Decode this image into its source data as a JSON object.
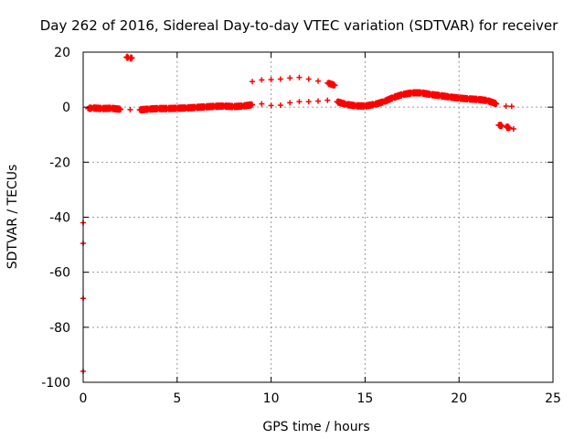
{
  "chart_data": {
    "type": "scatter",
    "title": "Day 262 of 2016, Sidereal Day-to-day VTEC variation (SDTVAR) for receiver",
    "xlabel": "GPS time / hours",
    "ylabel": "SDTVAR / TECUs",
    "xlim": [
      0,
      25
    ],
    "ylim": [
      -100,
      20
    ],
    "xticks": [
      0,
      5,
      10,
      15,
      20,
      25
    ],
    "yticks": [
      -100,
      -80,
      -60,
      -40,
      -20,
      0,
      20
    ],
    "grid": true,
    "series": [
      {
        "name": "SDTVAR",
        "color": "#ff0000",
        "points": [
          [
            0.0,
            -42
          ],
          [
            0.0,
            -49.5
          ],
          [
            0.0,
            -69.5
          ],
          [
            0.0,
            -96
          ],
          [
            0.25,
            -0.5
          ],
          [
            0.5,
            -0.3
          ],
          [
            1.0,
            -0.5
          ],
          [
            1.5,
            -0.4
          ],
          [
            2.0,
            -0.8
          ],
          [
            2.5,
            -0.9
          ],
          [
            3.0,
            -1.0
          ],
          [
            3.5,
            -0.7
          ],
          [
            4.0,
            -0.5
          ],
          [
            4.5,
            -0.5
          ],
          [
            5.0,
            -0.4
          ],
          [
            5.5,
            -0.3
          ],
          [
            6.0,
            -0.1
          ],
          [
            6.5,
            0.1
          ],
          [
            7.0,
            0.3
          ],
          [
            7.5,
            0.4
          ],
          [
            8.0,
            0.2
          ],
          [
            8.5,
            0.4
          ],
          [
            9.0,
            0.9
          ],
          [
            9.5,
            1.2
          ],
          [
            10.0,
            0.6
          ],
          [
            10.5,
            0.7
          ],
          [
            11.0,
            1.6
          ],
          [
            11.5,
            2.0
          ],
          [
            12.0,
            2.0
          ],
          [
            12.5,
            2.2
          ],
          [
            13.0,
            2.5
          ],
          [
            13.5,
            2.0
          ],
          [
            14.0,
            1.0
          ],
          [
            14.5,
            0.5
          ],
          [
            15.0,
            0.4
          ],
          [
            15.5,
            1.0
          ],
          [
            16.0,
            2.0
          ],
          [
            16.5,
            3.5
          ],
          [
            17.0,
            4.6
          ],
          [
            17.5,
            5.2
          ],
          [
            18.0,
            5.2
          ],
          [
            18.5,
            4.6
          ],
          [
            19.0,
            4.2
          ],
          [
            19.5,
            3.7
          ],
          [
            20.0,
            3.3
          ],
          [
            20.5,
            3.0
          ],
          [
            21.0,
            2.8
          ],
          [
            21.5,
            2.4
          ],
          [
            22.0,
            1.2
          ],
          [
            22.5,
            0.4
          ],
          [
            22.8,
            0.3
          ],
          [
            2.3,
            18.2
          ],
          [
            2.4,
            18.0
          ],
          [
            2.5,
            17.8
          ],
          [
            2.6,
            17.9
          ],
          [
            9.0,
            9.3
          ],
          [
            9.5,
            9.9
          ],
          [
            10.0,
            10.0
          ],
          [
            10.5,
            10.2
          ],
          [
            11.0,
            10.6
          ],
          [
            11.5,
            10.8
          ],
          [
            12.0,
            10.2
          ],
          [
            12.5,
            9.5
          ],
          [
            13.0,
            8.8
          ],
          [
            13.4,
            7.9
          ],
          [
            22.1,
            -6.5
          ],
          [
            22.3,
            -6.8
          ],
          [
            22.5,
            -7.1
          ],
          [
            22.7,
            -7.6
          ],
          [
            22.9,
            -7.9
          ]
        ]
      }
    ]
  }
}
